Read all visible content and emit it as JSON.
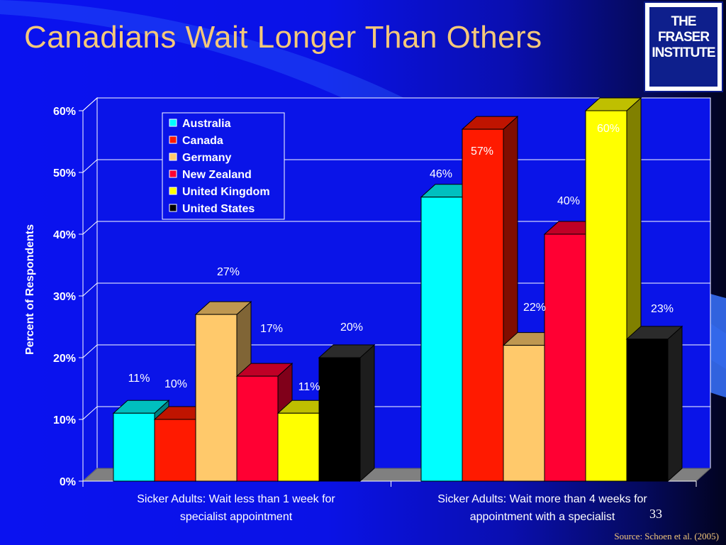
{
  "slide": {
    "title": "Canadians Wait Longer Than Others",
    "logo_line1": "THE FRASER",
    "logo_line2": "INSTITUTE",
    "slide_number": "33",
    "source": "Source: Schoen et al. (2005)"
  },
  "colors": {
    "Australia": "#00ffff",
    "Canada": "#ff1a00",
    "Germany": "#ffc96b",
    "New Zealand": "#ff0033",
    "United Kingdom": "#ffff00",
    "United States": "#000000"
  },
  "chart_data": {
    "type": "bar",
    "title": "Canadians Wait Longer Than Others",
    "ylabel": "Percent of Respondents",
    "xlabel": "",
    "ylim": [
      0,
      60
    ],
    "yticks": [
      "0%",
      "10%",
      "20%",
      "30%",
      "40%",
      "50%",
      "60%"
    ],
    "grid": true,
    "legend_position": "top-left",
    "categories": [
      "Sicker Adults: Wait less than 1 week for specialist appointment",
      "Sicker Adults: Wait more than 4 weeks for appointment with a specialist"
    ],
    "category_lines": [
      [
        "Sicker Adults: Wait less than 1 week for",
        "specialist appointment"
      ],
      [
        "Sicker Adults: Wait more than 4 weeks for",
        "appointment with a specialist"
      ]
    ],
    "series": [
      {
        "name": "Australia",
        "values": [
          11,
          46
        ],
        "labels": [
          "11%",
          "46%"
        ]
      },
      {
        "name": "Canada",
        "values": [
          10,
          57
        ],
        "labels": [
          "10%",
          "57%"
        ]
      },
      {
        "name": "Germany",
        "values": [
          27,
          22
        ],
        "labels": [
          "27%",
          "22%"
        ]
      },
      {
        "name": "New Zealand",
        "values": [
          17,
          40
        ],
        "labels": [
          "17%",
          "40%"
        ]
      },
      {
        "name": "United Kingdom",
        "values": [
          11,
          60
        ],
        "labels": [
          "11%",
          "60%"
        ]
      },
      {
        "name": "United States",
        "values": [
          20,
          23
        ],
        "labels": [
          "20%",
          "23%"
        ]
      }
    ]
  }
}
